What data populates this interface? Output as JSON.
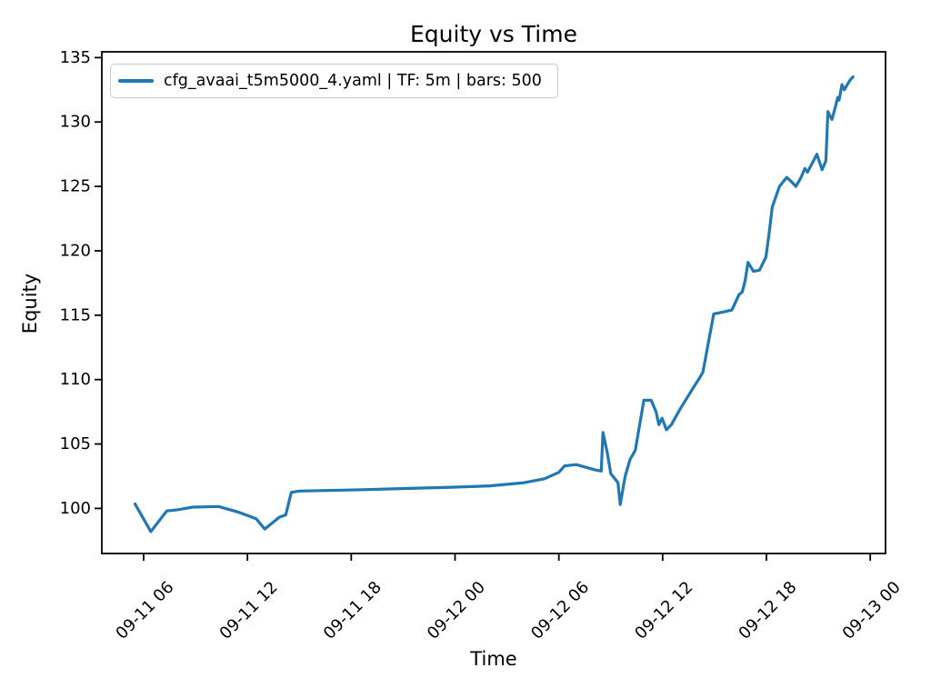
{
  "chart_data": {
    "type": "line",
    "title": "Equity vs Time",
    "xlabel": "Time",
    "ylabel": "Equity",
    "background_color": "#ffffff",
    "text_color": "#000000",
    "spine_color": "#000000",
    "grid": false,
    "legend": {
      "position": "upper-left",
      "entries": [
        {
          "label": "cfg_avaai_t5m5000_4.yaml | TF: 5m | bars: 500",
          "color": "#1f77b4"
        }
      ]
    },
    "x_ticks": [
      "09-11 06",
      "09-11 12",
      "09-11 18",
      "09-12 00",
      "09-12 06",
      "09-12 12",
      "09-12 18",
      "09-13 00"
    ],
    "y_ticks": [
      100,
      105,
      110,
      115,
      120,
      125,
      130,
      135
    ],
    "xlim": [
      "09-11 03:35",
      "09-13 00:53"
    ],
    "ylim": [
      96.5,
      135.45
    ],
    "series": [
      {
        "name": "cfg_avaai_t5m5000_4.yaml | TF: 5m | bars: 500",
        "timeframe": "5m",
        "bars": 500,
        "color": "#1f77b4",
        "points": [
          [
            "09-11 05:30",
            100.35
          ],
          [
            "09-11 06:25",
            98.2
          ],
          [
            "09-11 07:20",
            99.8
          ],
          [
            "09-11 08:00",
            99.9
          ],
          [
            "09-11 08:50",
            100.1
          ],
          [
            "09-11 10:20",
            100.15
          ],
          [
            "09-11 11:30",
            99.7
          ],
          [
            "09-11 12:30",
            99.2
          ],
          [
            "09-11 13:00",
            98.4
          ],
          [
            "09-11 13:50",
            99.3
          ],
          [
            "09-11 14:13",
            99.5
          ],
          [
            "09-11 14:32",
            101.25
          ],
          [
            "09-11 15:00",
            101.35
          ],
          [
            "09-11 18:40",
            101.45
          ],
          [
            "09-11 21:20",
            101.55
          ],
          [
            "09-12 00:00",
            101.65
          ],
          [
            "09-12 02:00",
            101.75
          ],
          [
            "09-12 04:00",
            102.0
          ],
          [
            "09-12 05:10",
            102.3
          ],
          [
            "09-12 06:00",
            102.8
          ],
          [
            "09-12 06:20",
            103.3
          ],
          [
            "09-12 07:00",
            103.4
          ],
          [
            "09-12 08:05",
            103.0
          ],
          [
            "09-12 08:27",
            102.9
          ],
          [
            "09-12 08:33",
            105.9
          ],
          [
            "09-12 08:48",
            104.3
          ],
          [
            "09-12 09:00",
            102.7
          ],
          [
            "09-12 09:25",
            102.0
          ],
          [
            "09-12 09:33",
            100.3
          ],
          [
            "09-12 09:50",
            102.5
          ],
          [
            "09-12 10:07",
            103.8
          ],
          [
            "09-12 10:25",
            104.5
          ],
          [
            "09-12 10:55",
            108.4
          ],
          [
            "09-12 11:20",
            108.4
          ],
          [
            "09-12 11:37",
            107.5
          ],
          [
            "09-12 11:47",
            106.5
          ],
          [
            "09-12 11:58",
            107.0
          ],
          [
            "09-12 12:13",
            106.1
          ],
          [
            "09-12 12:30",
            106.5
          ],
          [
            "09-12 13:00",
            107.7
          ],
          [
            "09-12 13:47",
            109.4
          ],
          [
            "09-12 14:10",
            110.2
          ],
          [
            "09-12 14:20",
            110.6
          ],
          [
            "09-12 14:57",
            115.1
          ],
          [
            "09-12 15:30",
            115.25
          ],
          [
            "09-12 16:00",
            115.4
          ],
          [
            "09-12 16:25",
            116.6
          ],
          [
            "09-12 16:36",
            116.8
          ],
          [
            "09-12 16:46",
            117.7
          ],
          [
            "09-12 16:56",
            119.1
          ],
          [
            "09-12 17:15",
            118.4
          ],
          [
            "09-12 17:36",
            118.5
          ],
          [
            "09-12 17:58",
            119.5
          ],
          [
            "09-12 18:10",
            121.5
          ],
          [
            "09-12 18:20",
            123.4
          ],
          [
            "09-12 18:45",
            125.0
          ],
          [
            "09-12 19:10",
            125.7
          ],
          [
            "09-12 19:25",
            125.4
          ],
          [
            "09-12 19:42",
            125.0
          ],
          [
            "09-12 20:00",
            125.7
          ],
          [
            "09-12 20:13",
            126.4
          ],
          [
            "09-12 20:22",
            126.1
          ],
          [
            "09-12 20:55",
            127.5
          ],
          [
            "09-12 21:13",
            126.3
          ],
          [
            "09-12 21:26",
            127.0
          ],
          [
            "09-12 21:33",
            130.8
          ],
          [
            "09-12 21:40",
            130.5
          ],
          [
            "09-12 21:47",
            130.2
          ],
          [
            "09-12 21:57",
            131.0
          ],
          [
            "09-12 22:07",
            131.9
          ],
          [
            "09-12 22:12",
            131.7
          ],
          [
            "09-12 22:22",
            132.9
          ],
          [
            "09-12 22:30",
            132.5
          ],
          [
            "09-12 22:48",
            133.2
          ],
          [
            "09-12 23:00",
            133.5
          ]
        ]
      }
    ]
  }
}
